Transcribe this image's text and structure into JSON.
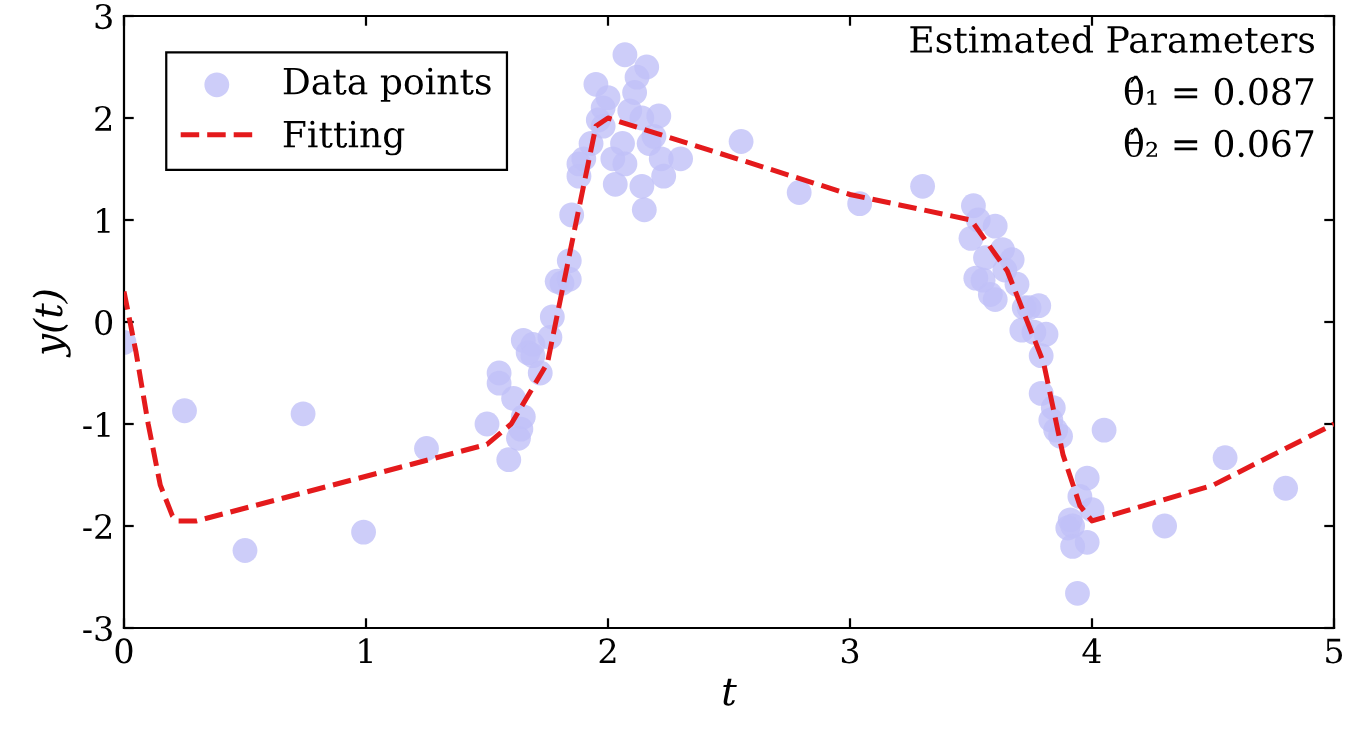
{
  "chart_data": {
    "type": "scatter",
    "xlabel": "t",
    "ylabel": "y(t)",
    "xlim": [
      0,
      5
    ],
    "ylim": [
      -3,
      3
    ],
    "xticks": [
      0,
      1,
      2,
      3,
      4,
      5
    ],
    "yticks": [
      -3,
      -2,
      -1,
      0,
      1,
      2,
      3
    ],
    "grid": false,
    "legend": "top left",
    "annotations": [
      "Estimated Parameters",
      "θ̂₁ = 0.087",
      "θ̂₂ = 0.067"
    ],
    "series": [
      {
        "name": "Data points",
        "marker": "circle",
        "color": "#c0c0f8",
        "x": [
          0,
          0.25,
          0.5,
          0.74,
          0.99,
          1.25,
          1.5,
          1.55,
          1.55,
          1.59,
          1.61,
          1.63,
          1.64,
          1.65,
          1.65,
          1.67,
          1.69,
          1.69,
          1.72,
          1.76,
          1.77,
          1.79,
          1.81,
          1.84,
          1.84,
          1.85,
          1.88,
          1.88,
          1.9,
          1.93,
          1.95,
          1.98,
          1.98,
          1.96,
          2.0,
          2.02,
          2.03,
          2.06,
          2.07,
          2.07,
          2.09,
          2.11,
          2.12,
          2.14,
          2.16,
          2.14,
          2.15,
          2.17,
          2.19,
          2.21,
          2.22,
          2.23,
          2.3,
          2.55,
          2.79,
          3.04,
          3.3,
          3.51,
          3.5,
          3.53,
          3.6,
          3.56,
          3.52,
          3.55,
          3.58,
          3.6,
          3.63,
          3.64,
          3.67,
          3.69,
          3.72,
          3.74,
          3.78,
          3.71,
          3.76,
          3.81,
          3.79,
          3.79,
          3.84,
          3.83,
          3.85,
          3.87,
          4.05,
          3.98,
          3.95,
          4.0,
          3.91,
          3.92,
          3.9,
          3.98,
          3.92,
          3.94,
          4.3,
          4.55,
          4.8
        ],
        "values": [
          -0.2,
          -0.87,
          -2.24,
          -0.9,
          -2.06,
          -1.24,
          -1.0,
          -0.5,
          -0.6,
          -1.35,
          -0.75,
          -1.14,
          -1.05,
          -0.93,
          -0.18,
          -0.3,
          -0.22,
          -0.33,
          -0.5,
          -0.15,
          0.05,
          0.4,
          0.38,
          0.6,
          0.42,
          1.05,
          1.55,
          1.43,
          1.6,
          1.75,
          2.33,
          2.1,
          1.92,
          1.98,
          2.2,
          1.6,
          1.35,
          1.75,
          1.55,
          2.62,
          2.07,
          2.25,
          2.4,
          1.33,
          2.5,
          2.0,
          1.1,
          1.75,
          1.82,
          2.02,
          1.6,
          1.43,
          1.6,
          1.77,
          1.27,
          1.16,
          1.33,
          1.14,
          0.82,
          1.0,
          0.94,
          0.63,
          0.43,
          0.41,
          0.27,
          0.22,
          0.71,
          0.51,
          0.61,
          0.37,
          0.14,
          0.14,
          0.16,
          -0.08,
          -0.1,
          -0.12,
          -0.33,
          -0.7,
          -0.84,
          -0.96,
          -1.06,
          -1.12,
          -1.06,
          -1.53,
          -1.71,
          -1.84,
          -1.94,
          -2.0,
          -2.02,
          -2.16,
          -2.2,
          -2.66,
          -2.0,
          -1.33,
          -1.63
        ]
      },
      {
        "name": "Fitting",
        "type": "line",
        "marker": "none",
        "line_style": "dashed",
        "color": "#e41a1c",
        "x": [
          0,
          0.05,
          0.1,
          0.15,
          0.2,
          0.22,
          0.3,
          1.5,
          1.6,
          1.75,
          1.87,
          1.95,
          2.0,
          2.2,
          3.0,
          3.5,
          3.65,
          3.8,
          3.88,
          3.95,
          4.0,
          4.5,
          5.0
        ],
        "values": [
          0.3,
          -0.3,
          -1.0,
          -1.6,
          -1.9,
          -1.95,
          -1.95,
          -1.2,
          -1.0,
          -0.4,
          1.0,
          1.92,
          2.0,
          1.85,
          1.25,
          1.0,
          0.5,
          -0.4,
          -1.3,
          -1.8,
          -1.95,
          -1.6,
          -1.0
        ]
      }
    ]
  }
}
